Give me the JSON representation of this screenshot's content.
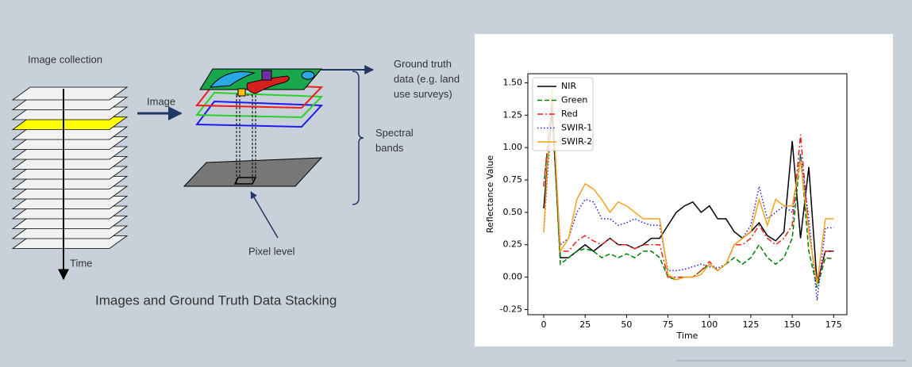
{
  "diagram": {
    "collection_label": "Image collection",
    "image_label": "Image",
    "time_label": "Time",
    "ground_truth_lines": [
      "Ground truth",
      "data (e.g. land",
      "use surveys)"
    ],
    "spectral_lines": [
      "Spectral",
      "bands"
    ],
    "pixel_label": "Pixel level",
    "caption": "Images and Ground Truth Data Stacking"
  },
  "chart_data": {
    "type": "line",
    "x_label": "Time",
    "y_label": "Reflectance Value",
    "x": [
      0,
      5,
      10,
      15,
      20,
      25,
      30,
      35,
      40,
      45,
      50,
      55,
      60,
      65,
      70,
      75,
      80,
      85,
      90,
      95,
      100,
      105,
      110,
      115,
      120,
      125,
      130,
      135,
      140,
      145,
      150,
      155,
      160,
      165,
      170,
      175
    ],
    "series": [
      {
        "name": "NIR",
        "color": "#000000",
        "linestyle": "solid",
        "values": [
          0.53,
          1.3,
          0.15,
          0.15,
          0.2,
          0.25,
          0.2,
          0.25,
          0.3,
          0.25,
          0.25,
          0.22,
          0.25,
          0.3,
          0.3,
          0.4,
          0.5,
          0.55,
          0.58,
          0.5,
          0.55,
          0.45,
          0.45,
          0.35,
          0.3,
          0.35,
          0.42,
          0.32,
          0.28,
          0.35,
          1.05,
          0.3,
          0.85,
          -0.05,
          0.2,
          0.2
        ]
      },
      {
        "name": "Green",
        "color": "#008000",
        "linestyle": "dashed",
        "values": [
          0.7,
          1.35,
          0.1,
          0.15,
          0.2,
          0.22,
          0.2,
          0.15,
          0.18,
          0.15,
          0.18,
          0.15,
          0.2,
          0.2,
          0.15,
          0.0,
          -0.02,
          0.0,
          0.0,
          0.05,
          0.1,
          0.05,
          0.1,
          0.15,
          0.1,
          0.15,
          0.25,
          0.15,
          0.1,
          0.15,
          0.3,
          0.95,
          0.2,
          -0.08,
          0.15,
          0.14
        ]
      },
      {
        "name": "Red",
        "color": "#e8231f",
        "linestyle": "dashdot",
        "values": [
          0.7,
          1.4,
          0.2,
          0.2,
          0.28,
          0.32,
          0.28,
          0.25,
          0.3,
          0.25,
          0.25,
          0.22,
          0.25,
          0.25,
          0.25,
          0.0,
          0.0,
          0.0,
          0.0,
          0.05,
          0.12,
          0.05,
          0.1,
          0.25,
          0.25,
          0.3,
          0.4,
          0.3,
          0.25,
          0.3,
          0.4,
          1.1,
          0.35,
          -0.05,
          0.2,
          0.2
        ]
      },
      {
        "name": "SWIR-1",
        "color": "#1f1fd6",
        "linestyle": "dotted",
        "values": [
          0.35,
          1.3,
          0.25,
          0.3,
          0.5,
          0.6,
          0.58,
          0.45,
          0.45,
          0.4,
          0.42,
          0.45,
          0.42,
          0.4,
          0.4,
          0.05,
          0.05,
          0.06,
          0.08,
          0.1,
          0.08,
          0.07,
          0.1,
          0.25,
          0.3,
          0.4,
          0.7,
          0.45,
          0.5,
          0.55,
          0.5,
          0.95,
          0.45,
          -0.18,
          0.38,
          0.38
        ]
      },
      {
        "name": "SWIR-2",
        "color": "#f5a21b",
        "linestyle": "solid",
        "values": [
          0.35,
          1.45,
          0.2,
          0.3,
          0.6,
          0.72,
          0.68,
          0.6,
          0.5,
          0.58,
          0.55,
          0.5,
          0.45,
          0.45,
          0.45,
          0.02,
          -0.02,
          0.0,
          0.0,
          0.02,
          0.1,
          0.05,
          0.1,
          0.25,
          0.3,
          0.35,
          0.6,
          0.4,
          0.6,
          0.55,
          0.55,
          0.9,
          0.35,
          -0.05,
          0.45,
          0.45
        ]
      }
    ],
    "xlim": [
      -9.6,
      183
    ],
    "xticks": [
      0,
      25,
      50,
      75,
      100,
      125,
      150,
      175
    ],
    "ylim": [
      -0.29,
      1.57
    ],
    "yticks": [
      -0.25,
      {
        "value": 0,
        "label": "0.00"
      },
      0.25,
      {
        "value": 0.5,
        "label": "0.50"
      },
      0.75,
      {
        "value": 1,
        "label": "1.00"
      },
      1.25,
      {
        "value": 1.5,
        "label": "1.50"
      }
    ],
    "legend": "upper left"
  }
}
